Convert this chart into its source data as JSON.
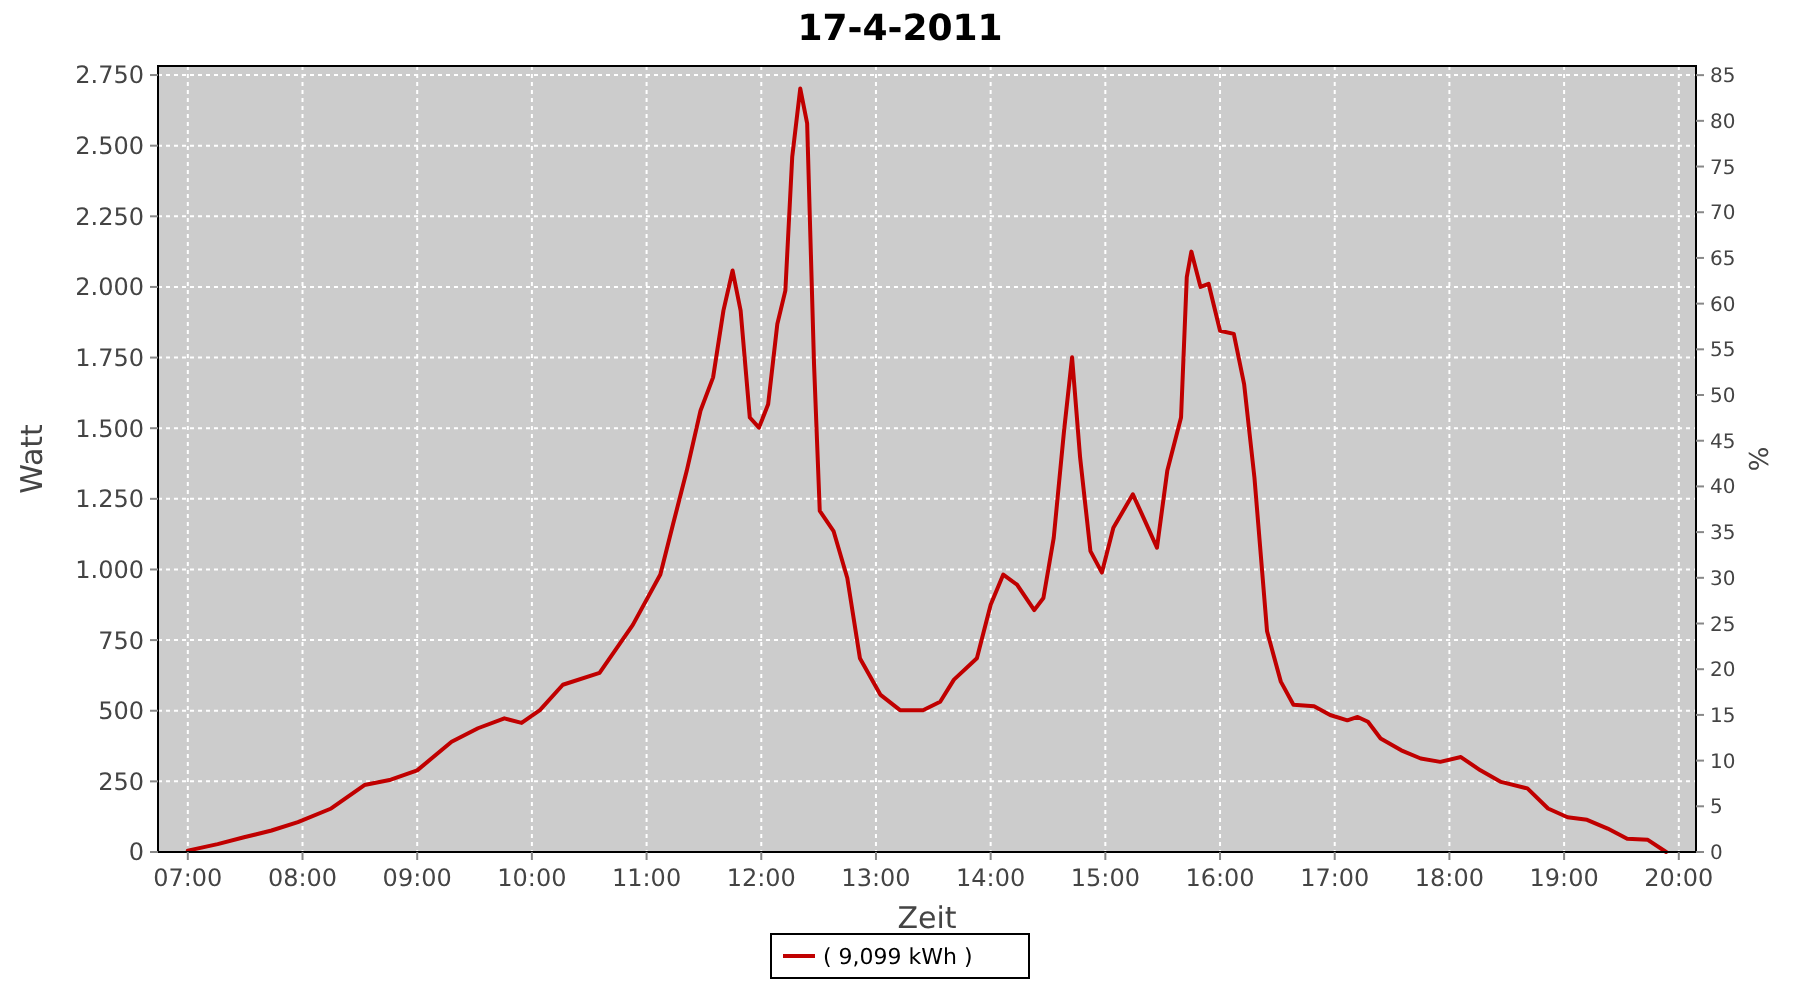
{
  "chart_data": {
    "type": "line",
    "title": "17-4-2011",
    "xlabel": "Zeit",
    "ylabel": "Watt",
    "y2label": "%",
    "x": [
      7.0,
      7.26,
      7.49,
      7.73,
      7.96,
      8.25,
      8.54,
      8.77,
      9.0,
      9.3,
      9.53,
      9.76,
      9.91,
      10.07,
      10.27,
      10.59,
      10.88,
      11.12,
      11.23,
      11.35,
      11.47,
      11.58,
      11.67,
      11.75,
      11.82,
      11.9,
      11.98,
      12.06,
      12.14,
      12.21,
      12.27,
      12.34,
      12.4,
      12.46,
      12.51,
      12.63,
      12.75,
      12.86,
      13.04,
      13.21,
      13.41,
      13.56,
      13.68,
      13.88,
      14.0,
      14.11,
      14.23,
      14.38,
      14.46,
      14.55,
      14.64,
      14.71,
      14.78,
      14.87,
      14.97,
      15.07,
      15.24,
      15.36,
      15.45,
      15.54,
      15.66,
      15.71,
      15.75,
      15.83,
      15.9,
      16.0,
      16.12,
      16.21,
      16.3,
      16.41,
      16.53,
      16.64,
      16.82,
      16.96,
      17.11,
      17.2,
      17.29,
      17.4,
      17.58,
      17.75,
      17.92,
      18.1,
      18.27,
      18.45,
      18.68,
      18.86,
      19.03,
      19.2,
      19.38,
      19.55,
      19.73,
      19.89
    ],
    "series": [
      {
        "name": "( 9,099 kWh )",
        "color": "#c00000",
        "values": [
          5,
          28,
          52,
          76,
          106,
          154,
          237,
          256,
          289,
          390,
          438,
          473,
          457,
          502,
          592,
          634,
          804,
          982,
          1159,
          1349,
          1562,
          1680,
          1916,
          2058,
          1916,
          1538,
          1502,
          1585,
          1869,
          1987,
          2461,
          2702,
          2579,
          1727,
          1207,
          1136,
          970,
          686,
          556,
          502,
          502,
          532,
          610,
          686,
          875,
          982,
          946,
          856,
          899,
          1112,
          1491,
          1751,
          1396,
          1065,
          989,
          1148,
          1266,
          1159,
          1077,
          1349,
          1538,
          2035,
          2125,
          2000,
          2011,
          1845,
          1834,
          1656,
          1325,
          781,
          603,
          521,
          516,
          485,
          466,
          478,
          461,
          402,
          360,
          331,
          319,
          336,
          289,
          248,
          225,
          154,
          123,
          114,
          83,
          47,
          43,
          0
        ]
      }
    ],
    "xlim": [
      6.74,
      20.15
    ],
    "xticks": [
      {
        "value": 7,
        "label": "07:00"
      },
      {
        "value": 8,
        "label": "08:00"
      },
      {
        "value": 9,
        "label": "09:00"
      },
      {
        "value": 10,
        "label": "10:00"
      },
      {
        "value": 11,
        "label": "11:00"
      },
      {
        "value": 12,
        "label": "12:00"
      },
      {
        "value": 13,
        "label": "13:00"
      },
      {
        "value": 14,
        "label": "14:00"
      },
      {
        "value": 15,
        "label": "15:00"
      },
      {
        "value": 16,
        "label": "16:00"
      },
      {
        "value": 17,
        "label": "17:00"
      },
      {
        "value": 18,
        "label": "18:00"
      },
      {
        "value": 19,
        "label": "19:00"
      },
      {
        "value": 20,
        "label": "20:00"
      }
    ],
    "ylim": [
      0,
      2782
    ],
    "yticks": [
      0,
      {
        "value": 250,
        "label": "250"
      },
      {
        "value": 500,
        "label": "500"
      },
      {
        "value": 750,
        "label": "750"
      },
      {
        "value": 1000,
        "label": "1.000"
      },
      {
        "value": 1250,
        "label": "1.250"
      },
      {
        "value": 1500,
        "label": "1.500"
      },
      {
        "value": 1750,
        "label": "1.750"
      },
      {
        "value": 2000,
        "label": "2.000"
      },
      {
        "value": 2250,
        "label": "2.250"
      },
      {
        "value": 2500,
        "label": "2.500"
      },
      {
        "value": 2750,
        "label": "2.750"
      }
    ],
    "y2lim": [
      0,
      86
    ],
    "y2ticks": [
      0,
      5,
      10,
      15,
      20,
      25,
      30,
      35,
      40,
      45,
      50,
      55,
      60,
      65,
      70,
      75,
      80,
      85
    ],
    "grid": true,
    "legend": "bottom",
    "line_style": "solid",
    "marker": "none"
  }
}
